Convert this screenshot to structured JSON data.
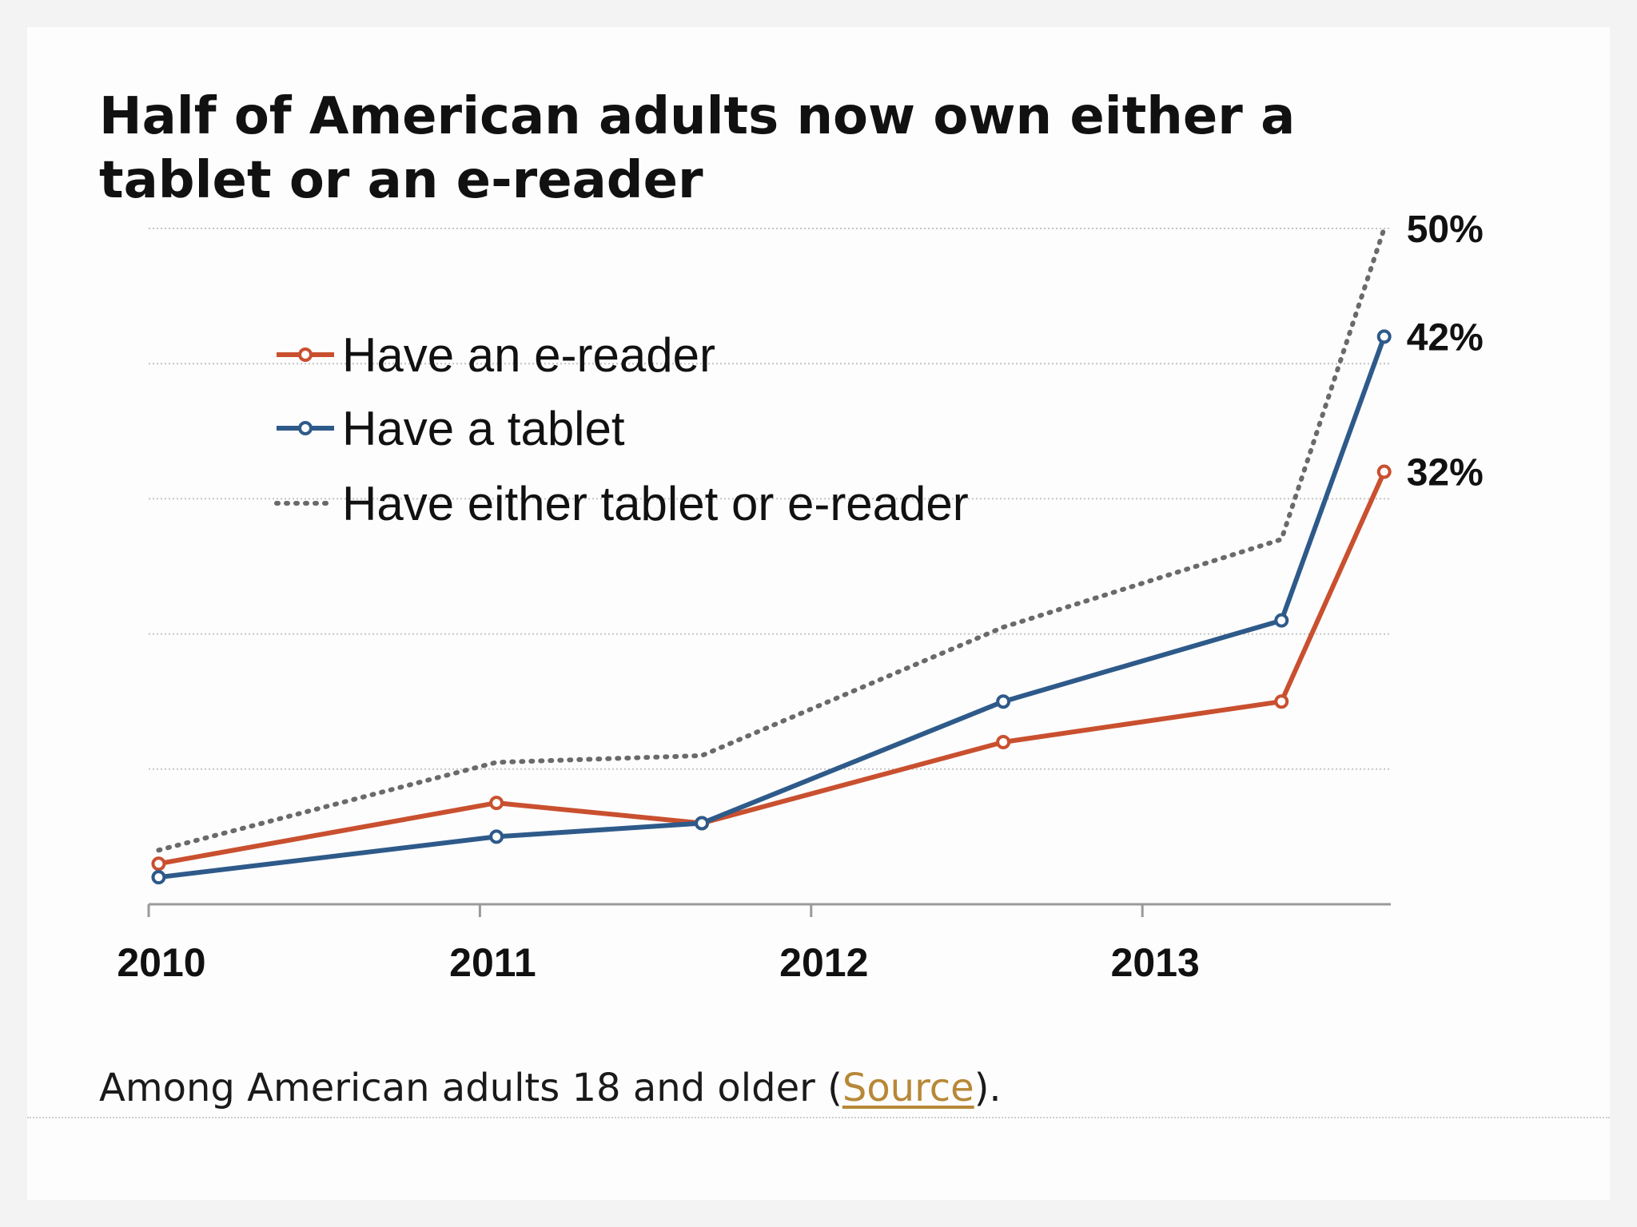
{
  "chart_data": {
    "type": "line",
    "title": "Half of American adults now own either a tablet or an e-reader",
    "xlabel": "",
    "ylabel": "",
    "ylim": [
      0,
      50
    ],
    "xlim": [
      2010.0,
      2013.75
    ],
    "x_ticks": [
      "2010",
      "2011",
      "2012",
      "2013"
    ],
    "grid": true,
    "legend_position": "top-left",
    "series": [
      {
        "name": "Have an e-reader",
        "color": "#c9502f",
        "style": "solid",
        "markers": true,
        "x": [
          2010.03,
          2011.05,
          2011.67,
          2012.58,
          2013.42,
          2013.73
        ],
        "y": [
          3,
          7.5,
          6,
          12,
          15,
          32
        ],
        "end_label": "32%"
      },
      {
        "name": "Have a tablet",
        "color": "#2e5a8a",
        "style": "solid",
        "markers": true,
        "x": [
          2010.03,
          2011.05,
          2011.67,
          2012.58,
          2013.42,
          2013.73
        ],
        "y": [
          2,
          5,
          6,
          15,
          21,
          42
        ],
        "end_label": "42%"
      },
      {
        "name": "Have either tablet or e-reader",
        "color": "#6a6a6a",
        "style": "dotted",
        "markers": false,
        "x": [
          2010.03,
          2011.05,
          2011.67,
          2012.58,
          2013.42,
          2013.73
        ],
        "y": [
          4,
          10.5,
          11,
          20.5,
          27,
          50
        ],
        "end_label": "50%"
      }
    ]
  },
  "note": {
    "prefix": "Among American adults 18 and older (",
    "link": "Source",
    "suffix": ")."
  }
}
